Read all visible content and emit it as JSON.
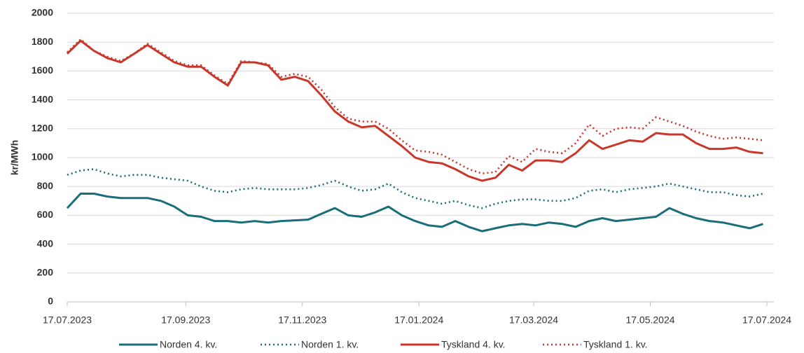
{
  "chart_data": {
    "type": "line",
    "y_label": "kr/MWh",
    "x": [
      "17.07.2023",
      "24.07.2023",
      "31.07.2023",
      "07.08.2023",
      "14.08.2023",
      "21.08.2023",
      "28.08.2023",
      "04.09.2023",
      "11.09.2023",
      "18.09.2023",
      "25.09.2023",
      "02.10.2023",
      "09.10.2023",
      "16.10.2023",
      "23.10.2023",
      "30.10.2023",
      "06.11.2023",
      "13.11.2023",
      "20.11.2023",
      "27.11.2023",
      "04.12.2023",
      "11.12.2023",
      "18.12.2023",
      "25.12.2023",
      "01.01.2024",
      "08.01.2024",
      "15.01.2024",
      "22.01.2024",
      "29.01.2024",
      "05.02.2024",
      "12.02.2024",
      "19.02.2024",
      "26.02.2024",
      "04.03.2024",
      "11.03.2024",
      "18.03.2024",
      "25.03.2024",
      "01.04.2024",
      "08.04.2024",
      "15.04.2024",
      "22.04.2024",
      "29.04.2024",
      "06.05.2024",
      "13.05.2024",
      "20.05.2024",
      "27.05.2024",
      "03.06.2024",
      "10.06.2024",
      "17.06.2024",
      "24.06.2024",
      "01.07.2024",
      "08.07.2024",
      "15.07.2024"
    ],
    "series": [
      {
        "name": "Norden 4. kv.",
        "color": "#1a6e7a",
        "dash": "solid",
        "values": [
          650,
          750,
          750,
          730,
          720,
          720,
          720,
          700,
          660,
          600,
          590,
          560,
          560,
          550,
          560,
          550,
          560,
          565,
          570,
          610,
          650,
          600,
          590,
          620,
          660,
          600,
          560,
          530,
          520,
          560,
          520,
          490,
          510,
          530,
          540,
          530,
          550,
          540,
          520,
          560,
          580,
          560,
          570,
          580,
          590,
          650,
          610,
          580,
          560,
          550,
          530,
          510,
          540
        ]
      },
      {
        "name": "Norden 1. kv.",
        "color": "#1a6e7a",
        "dash": "dotted",
        "values": [
          880,
          910,
          920,
          890,
          870,
          880,
          880,
          860,
          850,
          840,
          800,
          770,
          760,
          780,
          790,
          780,
          780,
          780,
          790,
          810,
          840,
          800,
          770,
          780,
          820,
          760,
          720,
          700,
          680,
          700,
          670,
          650,
          680,
          700,
          710,
          710,
          700,
          700,
          720,
          770,
          780,
          760,
          780,
          790,
          800,
          820,
          800,
          780,
          760,
          760,
          740,
          730,
          750
        ]
      },
      {
        "name": "Tyskland 4. kv.",
        "color": "#c8372a",
        "dash": "solid",
        "values": [
          1720,
          1810,
          1740,
          1690,
          1660,
          1720,
          1780,
          1720,
          1660,
          1630,
          1630,
          1560,
          1500,
          1660,
          1660,
          1640,
          1540,
          1560,
          1530,
          1430,
          1320,
          1250,
          1210,
          1220,
          1150,
          1080,
          1000,
          970,
          960,
          920,
          870,
          840,
          860,
          950,
          910,
          980,
          980,
          970,
          1030,
          1120,
          1060,
          1090,
          1120,
          1110,
          1170,
          1160,
          1160,
          1100,
          1060,
          1060,
          1070,
          1040,
          1030
        ]
      },
      {
        "name": "Tyskland 1. kv.",
        "color": "#c8372a",
        "dash": "dotted",
        "values": [
          1730,
          1820,
          1740,
          1700,
          1670,
          1720,
          1790,
          1730,
          1670,
          1640,
          1640,
          1570,
          1510,
          1670,
          1660,
          1650,
          1560,
          1580,
          1560,
          1470,
          1350,
          1270,
          1250,
          1250,
          1200,
          1120,
          1050,
          1040,
          1020,
          970,
          920,
          890,
          900,
          1010,
          970,
          1060,
          1040,
          1030,
          1100,
          1230,
          1150,
          1200,
          1210,
          1200,
          1280,
          1250,
          1220,
          1180,
          1150,
          1130,
          1140,
          1130,
          1120
        ]
      }
    ],
    "xlim": [
      "17.07.2023",
      "17.07.2024"
    ],
    "xticks": [
      "17.07.2023",
      "17.09.2023",
      "17.11.2023",
      "17.01.2024",
      "17.03.2024",
      "17.05.2024",
      "17.07.2024"
    ],
    "ylim": [
      0,
      2000
    ],
    "yticks": [
      0,
      200,
      400,
      600,
      800,
      1000,
      1200,
      1400,
      1600,
      1800,
      2000
    ],
    "grid": true,
    "legend": "bottom"
  }
}
